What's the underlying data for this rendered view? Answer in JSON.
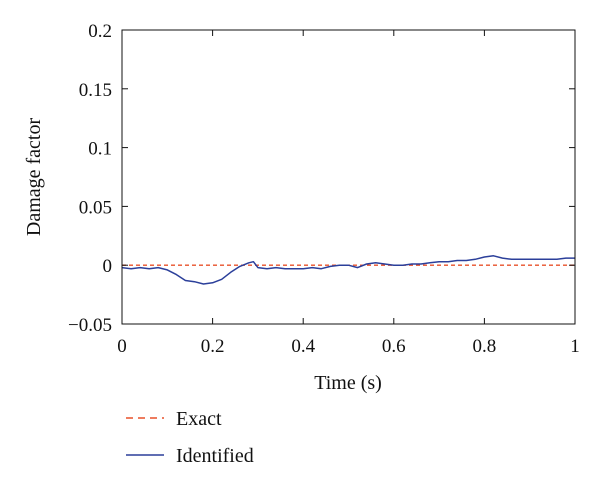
{
  "chart_data": {
    "type": "line",
    "xlabel": "Time (s)",
    "ylabel": "Damage factor",
    "xlim": [
      0,
      1
    ],
    "ylim": [
      -0.05,
      0.2
    ],
    "xticks": [
      0,
      0.2,
      0.4,
      0.6,
      0.8,
      1
    ],
    "xtick_labels": [
      "0",
      "0.2",
      "0.4",
      "0.6",
      "0.8",
      "1"
    ],
    "yticks": [
      -0.05,
      0,
      0.05,
      0.1,
      0.15,
      0.2
    ],
    "ytick_labels": [
      "−0.05",
      "0",
      "0.05",
      "0.1",
      "0.15",
      "0.2"
    ],
    "grid": false,
    "legend_placement": "below",
    "series": [
      {
        "name": "Exact",
        "style": "dashed",
        "color": "#e8502a",
        "x": [
          0,
          1
        ],
        "y": [
          0,
          0
        ]
      },
      {
        "name": "Identified",
        "style": "solid",
        "color": "#2b3f9a",
        "x": [
          0,
          0.02,
          0.04,
          0.06,
          0.08,
          0.1,
          0.12,
          0.14,
          0.16,
          0.18,
          0.2,
          0.22,
          0.24,
          0.26,
          0.28,
          0.29,
          0.3,
          0.32,
          0.34,
          0.36,
          0.38,
          0.4,
          0.42,
          0.44,
          0.46,
          0.48,
          0.5,
          0.52,
          0.54,
          0.56,
          0.58,
          0.6,
          0.62,
          0.64,
          0.66,
          0.68,
          0.7,
          0.72,
          0.74,
          0.76,
          0.78,
          0.8,
          0.82,
          0.84,
          0.86,
          0.88,
          0.9,
          0.92,
          0.94,
          0.96,
          0.98,
          1
        ],
        "y": [
          -0.002,
          -0.003,
          -0.002,
          -0.003,
          -0.002,
          -0.004,
          -0.008,
          -0.013,
          -0.014,
          -0.016,
          -0.015,
          -0.012,
          -0.006,
          -0.001,
          0.002,
          0.003,
          -0.002,
          -0.003,
          -0.002,
          -0.003,
          -0.003,
          -0.003,
          -0.002,
          -0.003,
          -0.001,
          0.0,
          0.0,
          -0.002,
          0.001,
          0.002,
          0.001,
          0.0,
          0.0,
          0.001,
          0.001,
          0.002,
          0.003,
          0.003,
          0.004,
          0.004,
          0.005,
          0.007,
          0.008,
          0.006,
          0.005,
          0.005,
          0.005,
          0.005,
          0.005,
          0.005,
          0.006,
          0.006
        ]
      }
    ]
  }
}
